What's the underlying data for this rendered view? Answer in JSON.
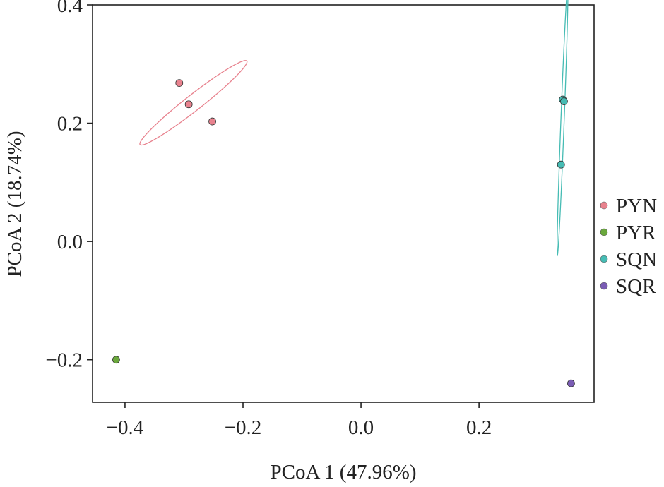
{
  "chart_data": {
    "type": "scatter",
    "xlabel": "PCoA 1 (47.96%)",
    "ylabel": "PCoA 2 (18.74%)",
    "xlim": [
      -0.455,
      0.395
    ],
    "ylim": [
      -0.272,
      0.4
    ],
    "x_ticks": [
      {
        "value": -0.4,
        "label": "−0.4"
      },
      {
        "value": -0.2,
        "label": "−0.2"
      },
      {
        "value": 0.0,
        "label": "0.0"
      },
      {
        "value": 0.2,
        "label": "0.2"
      }
    ],
    "y_ticks": [
      {
        "value": -0.2,
        "label": "−0.2"
      },
      {
        "value": 0.0,
        "label": "0.0"
      },
      {
        "value": 0.2,
        "label": "0.2"
      },
      {
        "value": 0.4,
        "label": "0.4"
      }
    ],
    "grid": false,
    "legend_position": "right",
    "series": [
      {
        "name": "PYN",
        "color": "#e8828e",
        "points": [
          {
            "x": -0.308,
            "y": 0.268
          },
          {
            "x": -0.292,
            "y": 0.232
          },
          {
            "x": -0.252,
            "y": 0.203
          }
        ],
        "ellipse": {
          "cx": -0.284,
          "cy": 0.2345,
          "rx_along": 0.1148,
          "ry_across": 0.0134,
          "angle_deg": 38
        }
      },
      {
        "name": "PYR",
        "color": "#6aa83c",
        "points": [
          {
            "x": -0.415,
            "y": -0.2
          }
        ]
      },
      {
        "name": "SQN",
        "color": "#46bcb4",
        "points": [
          {
            "x": 0.342,
            "y": 0.24
          },
          {
            "x": 0.344,
            "y": 0.237
          },
          {
            "x": 0.339,
            "y": 0.13
          }
        ],
        "ellipse": {
          "cx": 0.3415,
          "cy": 0.2035,
          "rx_along": 0.2275,
          "ry_across": 0.0028,
          "angle_deg": 87.8
        }
      },
      {
        "name": "SQR",
        "color": "#7a5cb4",
        "points": [
          {
            "x": 0.356,
            "y": -0.24
          }
        ]
      }
    ]
  }
}
